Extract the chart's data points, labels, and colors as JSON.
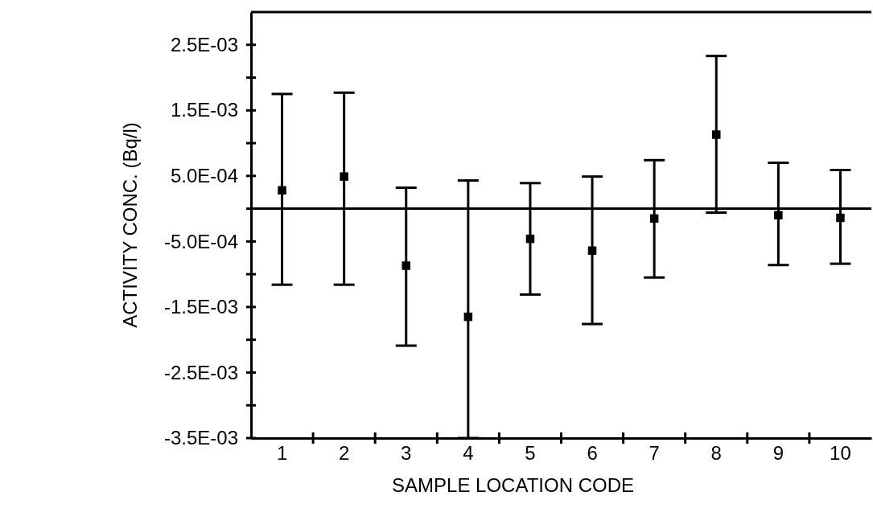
{
  "chart_data": {
    "type": "scatter",
    "xlabel": "SAMPLE LOCATION CODE",
    "ylabel": "ACTIVITY CONC. (Bq/l)",
    "categories": [
      "1",
      "2",
      "3",
      "4",
      "5",
      "6",
      "7",
      "8",
      "9",
      "10"
    ],
    "series": [
      {
        "color": "#000000",
        "values": [
          0.00028,
          0.00049,
          -0.00087,
          -0.00165,
          -0.00046,
          -0.00064,
          -0.00015,
          0.00113,
          -0.0001,
          -0.00014
        ],
        "errors": [
          [
            -0.00116,
            0.00175
          ],
          [
            -0.00116,
            0.00177
          ],
          [
            -0.00209,
            0.00032
          ],
          [
            -0.0035,
            0.00043
          ],
          [
            -0.00131,
            0.00039
          ],
          [
            -0.00176,
            0.00049
          ],
          [
            -0.00105,
            0.00074
          ],
          [
            -6e-05,
            0.00233
          ],
          [
            -0.00086,
            0.0007
          ],
          [
            -0.00084,
            0.00059
          ]
        ]
      }
    ],
    "marker": "square",
    "ylim": [
      -0.0035,
      0.003
    ],
    "yticks": [
      {
        "value": 0.0025,
        "label": "2.5E-03"
      },
      {
        "value": 0.002,
        "label": null
      },
      {
        "value": 0.0015,
        "label": "1.5E-03"
      },
      {
        "value": 0.001,
        "label": null
      },
      {
        "value": 0.0005,
        "label": "5.0E-04"
      },
      {
        "value": 0,
        "label": null
      },
      {
        "value": -0.0005,
        "label": "-5.0E-04"
      },
      {
        "value": -0.001,
        "label": null
      },
      {
        "value": -0.0015,
        "label": "-1.5E-03"
      },
      {
        "value": -0.002,
        "label": null
      },
      {
        "value": -0.0025,
        "label": "-2.5E-03"
      },
      {
        "value": -0.003,
        "label": null
      },
      {
        "value": -0.0035,
        "label": "-3.5E-03"
      }
    ],
    "ref_lines": [
      {
        "axis": "y",
        "value": 0,
        "color": "#000000",
        "line_style": "solid"
      }
    ],
    "grid": false
  }
}
